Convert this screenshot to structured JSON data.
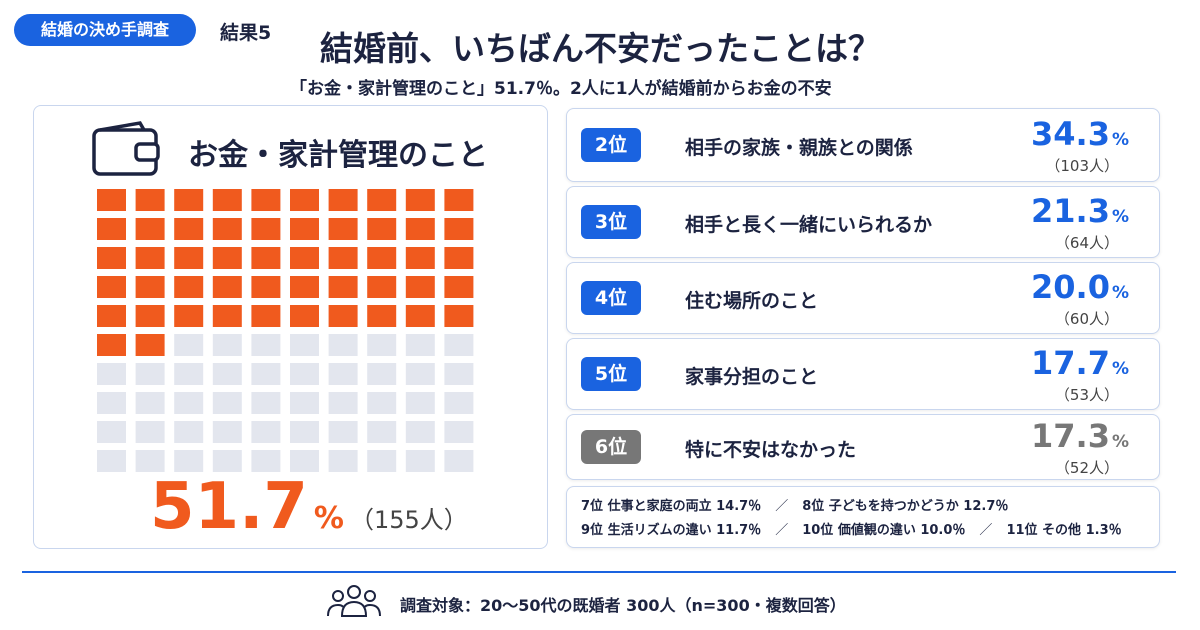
{
  "header": {
    "tag": "結婚の決め手調査",
    "result": "結果5",
    "title": "結婚前、いちばん不安だったことは？",
    "subtitle": "「お金・家計管理のこと」51.7％。2人に1人が結婚前からお金の不安"
  },
  "top": {
    "label": "お金・家計管理のこと",
    "value": 51.7,
    "unit": "%",
    "count": "（155人）"
  },
  "ranks": [
    {
      "rank": "2位",
      "label": "相手の家族・親族との関係",
      "value": "34.3",
      "unit": "%",
      "count": "（103人）"
    },
    {
      "rank": "3位",
      "label": "相手と長く一緒にいられるか",
      "value": "21.3",
      "unit": "%",
      "count": "（64人）"
    },
    {
      "rank": "4位",
      "label": "住む場所のこと",
      "value": "20.0",
      "unit": "%",
      "count": "（60人）"
    },
    {
      "rank": "5位",
      "label": "家事分担のこと",
      "value": "17.7",
      "unit": "%",
      "count": "（53人）"
    },
    {
      "rank": "6位",
      "label": "特に不安はなかった",
      "value": "17.3",
      "unit": "%",
      "count": "（52人）"
    }
  ],
  "others": {
    "separator": "／",
    "lines": [
      [
        "7位 仕事と家庭の両立 14.7％",
        "8位 子どもを持つかどうか 12.7％"
      ],
      [
        "9位 生活リズムの違い 11.7％",
        "10位 価値観の違い 10.0％",
        "11位 その他 1.3％"
      ]
    ]
  },
  "footer": "調査対象：20～50代の既婚者 300人（n=300・複数回答）"
}
